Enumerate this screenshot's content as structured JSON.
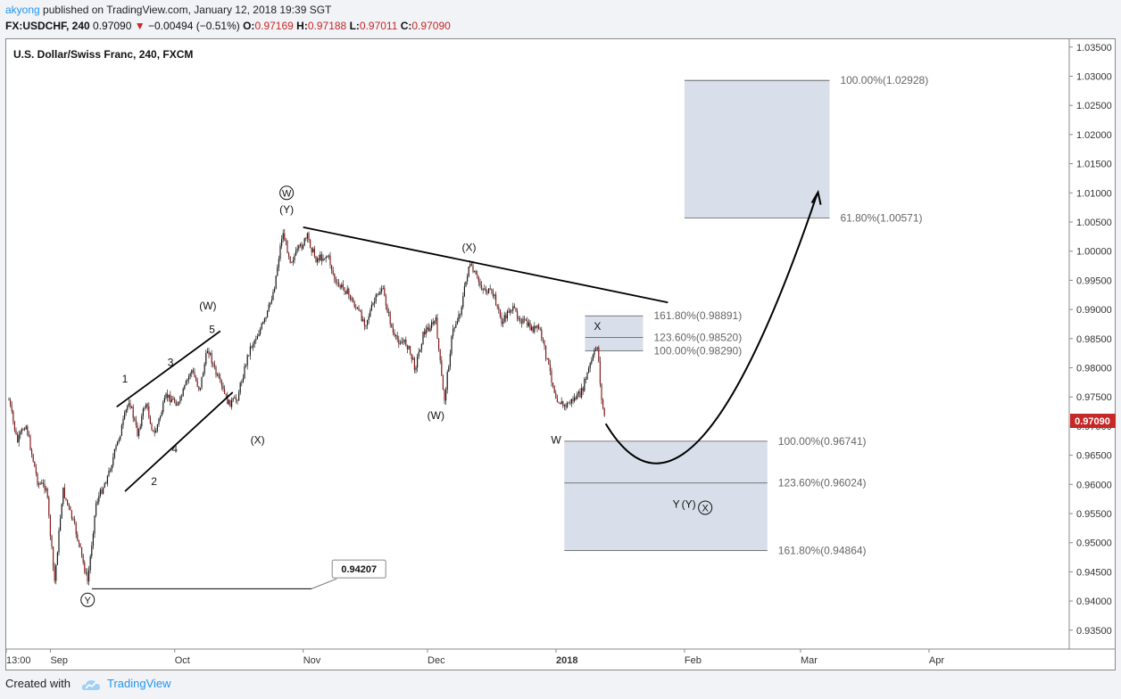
{
  "header": {
    "author": "akyong",
    "published_text": "published on TradingView.com, January 12, 2018 19:39 SGT",
    "symbol": "FX:USDCHF, 240",
    "last": "0.97090",
    "change": "−0.00494 (−0.51%)",
    "o_label": "O:",
    "o_value": "0.97169",
    "h_label": "H:",
    "h_value": "0.97188",
    "l_label": "L:",
    "l_value": "0.97011",
    "c_label": "C:",
    "c_value": "0.97090"
  },
  "footer": {
    "created_with": "Created with",
    "brand": "TradingView"
  },
  "colors": {
    "zone_fill": "#d5dbe8",
    "bullet_red": "#c62828",
    "accent_blue": "#2196f3",
    "ink": "#000000"
  },
  "chart_data": {
    "type": "candlestick",
    "title": "U.S. Dollar/Swiss Franc, 240, FXCM",
    "y_range": [
      0.931,
      1.0385
    ],
    "x_ticks": [
      "13:00",
      "Sep",
      "Oct",
      "Nov",
      "Dec",
      "2018",
      "Feb",
      "Mar",
      "Apr"
    ],
    "y_ticks": [
      "1.03500",
      "1.03000",
      "1.02500",
      "1.02000",
      "1.01500",
      "1.01000",
      "1.00500",
      "1.00000",
      "0.99500",
      "0.99000",
      "0.98500",
      "0.98000",
      "0.97500",
      "0.97000",
      "0.96500",
      "0.96000",
      "0.95500",
      "0.95000",
      "0.94500",
      "0.94000",
      "0.93500"
    ],
    "price_path": [
      [
        "2017-08-22",
        0.9745
      ],
      [
        "2017-08-24",
        0.9672
      ],
      [
        "2017-08-26",
        0.9705
      ],
      [
        "2017-08-29",
        0.9602
      ],
      [
        "2017-08-31",
        0.9596
      ],
      [
        "2017-09-02",
        0.9432
      ],
      [
        "2017-09-04",
        0.9591
      ],
      [
        "2017-09-07",
        0.9524
      ],
      [
        "2017-09-10",
        0.9432
      ],
      [
        "2017-09-12",
        0.9568
      ],
      [
        "2017-09-15",
        0.9617
      ],
      [
        "2017-09-18",
        0.9692
      ],
      [
        "2017-09-20",
        0.9746
      ],
      [
        "2017-09-22",
        0.9687
      ],
      [
        "2017-09-24",
        0.9741
      ],
      [
        "2017-09-26",
        0.9683
      ],
      [
        "2017-09-29",
        0.9752
      ],
      [
        "2017-10-02",
        0.9738
      ],
      [
        "2017-10-05",
        0.9797
      ],
      [
        "2017-10-07",
        0.9763
      ],
      [
        "2017-10-09",
        0.9835
      ],
      [
        "2017-10-11",
        0.9788
      ],
      [
        "2017-10-14",
        0.9738
      ],
      [
        "2017-10-16",
        0.9746
      ],
      [
        "2017-10-19",
        0.9831
      ],
      [
        "2017-10-23",
        0.9884
      ],
      [
        "2017-10-25",
        0.9937
      ],
      [
        "2017-10-27",
        1.0033
      ],
      [
        "2017-10-29",
        0.9983
      ],
      [
        "2017-11-02",
        1.0024
      ],
      [
        "2017-11-04",
        0.9987
      ],
      [
        "2017-11-07",
        0.9992
      ],
      [
        "2017-11-09",
        0.9941
      ],
      [
        "2017-11-11",
        0.9937
      ],
      [
        "2017-11-14",
        0.99
      ],
      [
        "2017-11-16",
        0.9876
      ],
      [
        "2017-11-18",
        0.9911
      ],
      [
        "2017-11-20",
        0.9938
      ],
      [
        "2017-11-23",
        0.985
      ],
      [
        "2017-11-26",
        0.9841
      ],
      [
        "2017-11-28",
        0.98
      ],
      [
        "2017-11-30",
        0.9859
      ],
      [
        "2017-12-03",
        0.9881
      ],
      [
        "2017-12-05",
        0.9741
      ],
      [
        "2017-12-07",
        0.9861
      ],
      [
        "2017-12-09",
        0.9899
      ],
      [
        "2017-12-11",
        0.9977
      ],
      [
        "2017-12-14",
        0.9939
      ],
      [
        "2017-12-17",
        0.9924
      ],
      [
        "2017-12-19",
        0.9876
      ],
      [
        "2017-12-21",
        0.9904
      ],
      [
        "2017-12-24",
        0.988
      ],
      [
        "2017-12-26",
        0.9867
      ],
      [
        "2017-12-28",
        0.9867
      ],
      [
        "2018-01-01",
        0.975
      ],
      [
        "2018-01-03",
        0.9733
      ],
      [
        "2018-01-05",
        0.9745
      ],
      [
        "2018-01-07",
        0.9755
      ],
      [
        "2018-01-09",
        0.98
      ],
      [
        "2018-01-11",
        0.984
      ],
      [
        "2018-01-12",
        0.9742
      ],
      [
        "2018-01-13",
        0.9709
      ]
    ],
    "last_price_label": "0.97090",
    "wave_labels": [
      {
        "text": "1",
        "date": "2017-09-19",
        "price": 0.9775
      },
      {
        "text": "2",
        "date": "2017-09-26",
        "price": 0.9599
      },
      {
        "text": "3",
        "date": "2017-09-30",
        "price": 0.9803
      },
      {
        "text": "4",
        "date": "2017-10-01",
        "price": 0.9655
      },
      {
        "text": "5",
        "date": "2017-10-10",
        "price": 0.986
      },
      {
        "text": "(W)",
        "date": "2017-10-09",
        "price": 0.99
      },
      {
        "text": "(X)",
        "date": "2017-10-21",
        "price": 0.967
      },
      {
        "text": "(Y)",
        "date": "2017-10-28",
        "price": 1.0065
      },
      {
        "text": "(W)",
        "date": "2017-12-03",
        "price": 0.9712
      },
      {
        "text": "(X)",
        "date": "2017-12-11",
        "price": 1.0
      },
      {
        "text": "W",
        "date": "2018-01-01",
        "price": 0.967
      },
      {
        "text": "X",
        "date": "2018-01-11",
        "price": 0.9865
      },
      {
        "text": "Y",
        "date": "2018-01-30",
        "price": 0.956
      },
      {
        "text": "(Y)",
        "date": "2018-02-02",
        "price": 0.956
      }
    ],
    "circled_labels": [
      {
        "text": "W",
        "date": "2017-10-28",
        "price": 1.01
      },
      {
        "text": "Y",
        "date": "2017-09-10",
        "price": 0.9402
      },
      {
        "text": "X",
        "date": "2018-02-06",
        "price": 0.956
      }
    ],
    "trendlines": [
      {
        "name": "channel-upper",
        "from": [
          "2017-09-17",
          0.9733
        ],
        "to": [
          "2017-10-12",
          0.9863
        ]
      },
      {
        "name": "channel-lower",
        "from": [
          "2017-09-19",
          0.9588
        ],
        "to": [
          "2017-10-15",
          0.9758
        ]
      },
      {
        "name": "resistance",
        "from": [
          "2017-11-01",
          1.0041
        ],
        "to": [
          "2018-01-28",
          0.9912
        ]
      },
      {
        "name": "low-line",
        "from": [
          "2017-09-11",
          0.9421
        ],
        "to": [
          "2017-11-03",
          0.9421
        ]
      }
    ],
    "callout": {
      "text": "0.94207",
      "date": "2017-11-08",
      "price": 0.9432
    },
    "fib_zones": [
      {
        "from": "2018-01-08",
        "to": "2018-01-22",
        "top": 0.98891,
        "bottom": 0.9829,
        "levels": [
          {
            "price": 0.98891,
            "label": "161.80%(0.98891)"
          },
          {
            "price": 0.9852,
            "label": "123.60%(0.98520)"
          },
          {
            "price": 0.9829,
            "label": "100.00%(0.98290)"
          }
        ]
      },
      {
        "from": "2018-01-03",
        "to": "2018-02-21",
        "top": 0.96741,
        "bottom": 0.94864,
        "levels": [
          {
            "price": 0.96741,
            "label": "100.00%(0.96741)"
          },
          {
            "price": 0.96024,
            "label": "123.60%(0.96024)"
          },
          {
            "price": 0.94864,
            "label": "161.80%(0.94864)"
          }
        ]
      },
      {
        "from": "2018-02-01",
        "to": "2018-03-08",
        "top": 1.02928,
        "bottom": 1.00571,
        "levels": [
          {
            "price": 1.02928,
            "label": "100.00%(1.02928)"
          },
          {
            "price": 1.00571,
            "label": "61.80%(1.00571)"
          }
        ]
      }
    ],
    "projection": [
      [
        "2018-01-13",
        0.9704
      ],
      [
        "2018-01-27",
        0.9622
      ],
      [
        "2018-02-13",
        0.9717
      ],
      [
        "2018-03-05",
        1.0098
      ]
    ]
  }
}
